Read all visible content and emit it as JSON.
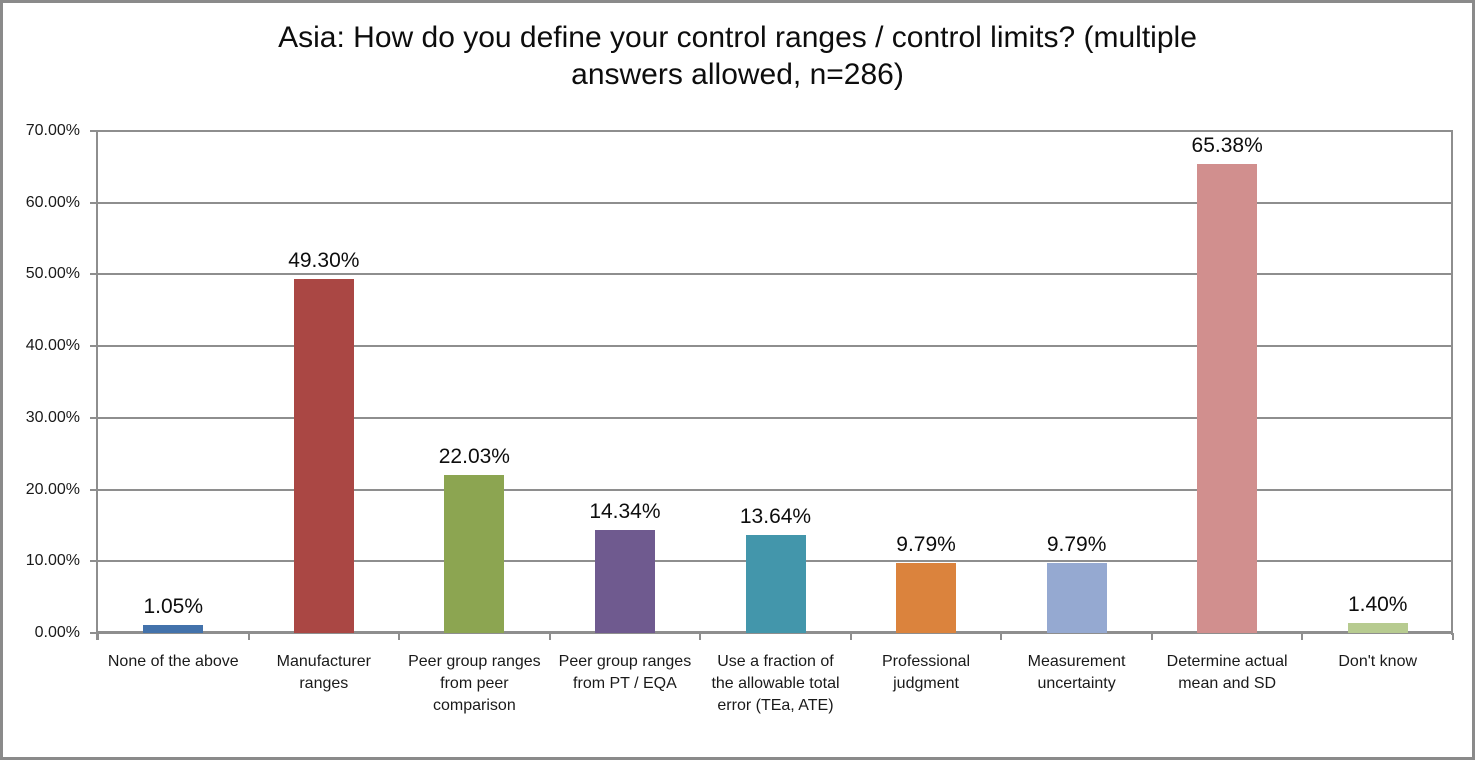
{
  "title": {
    "line1": "Asia: How do you define your control ranges / control limits? (multiple",
    "line2": "answers allowed, n=286)"
  },
  "chart_data": {
    "type": "bar",
    "title": "Asia: How do you define your control ranges / control limits? (multiple answers allowed, n=286)",
    "categories": [
      "None of the above",
      "Manufacturer ranges",
      "Peer group ranges from peer comparison",
      "Peer group ranges from PT / EQA",
      "Use a fraction of the allowable total error (TEa, ATE)",
      "Professional judgment",
      "Measurement uncertainty",
      "Determine actual mean and SD",
      "Don't know"
    ],
    "values": [
      1.05,
      49.3,
      22.03,
      14.34,
      13.64,
      9.79,
      9.79,
      65.38,
      1.4
    ],
    "value_labels": [
      "1.05%",
      "49.30%",
      "22.03%",
      "14.34%",
      "13.64%",
      "9.79%",
      "9.79%",
      "65.38%",
      "1.40%"
    ],
    "bar_colors": [
      "#4372AB",
      "#AA4744",
      "#8CA551",
      "#6F5A8F",
      "#4396AB",
      "#DB833D",
      "#95A9D1",
      "#D18F8E",
      "#B7CB90"
    ],
    "y_ticks": [
      "0.00%",
      "10.00%",
      "20.00%",
      "30.00%",
      "40.00%",
      "50.00%",
      "60.00%",
      "70.00%"
    ],
    "y_tick_values": [
      0,
      10,
      20,
      30,
      40,
      50,
      60,
      70
    ],
    "ylim": [
      0,
      70
    ],
    "xlabel": "",
    "ylabel": "",
    "grid": true,
    "legend": "none",
    "colors": {
      "gridline": "#8e8e8e",
      "axis": "#8e8e8e",
      "frame_border": "#8a8a8a",
      "text": "#1a1a1a"
    }
  }
}
